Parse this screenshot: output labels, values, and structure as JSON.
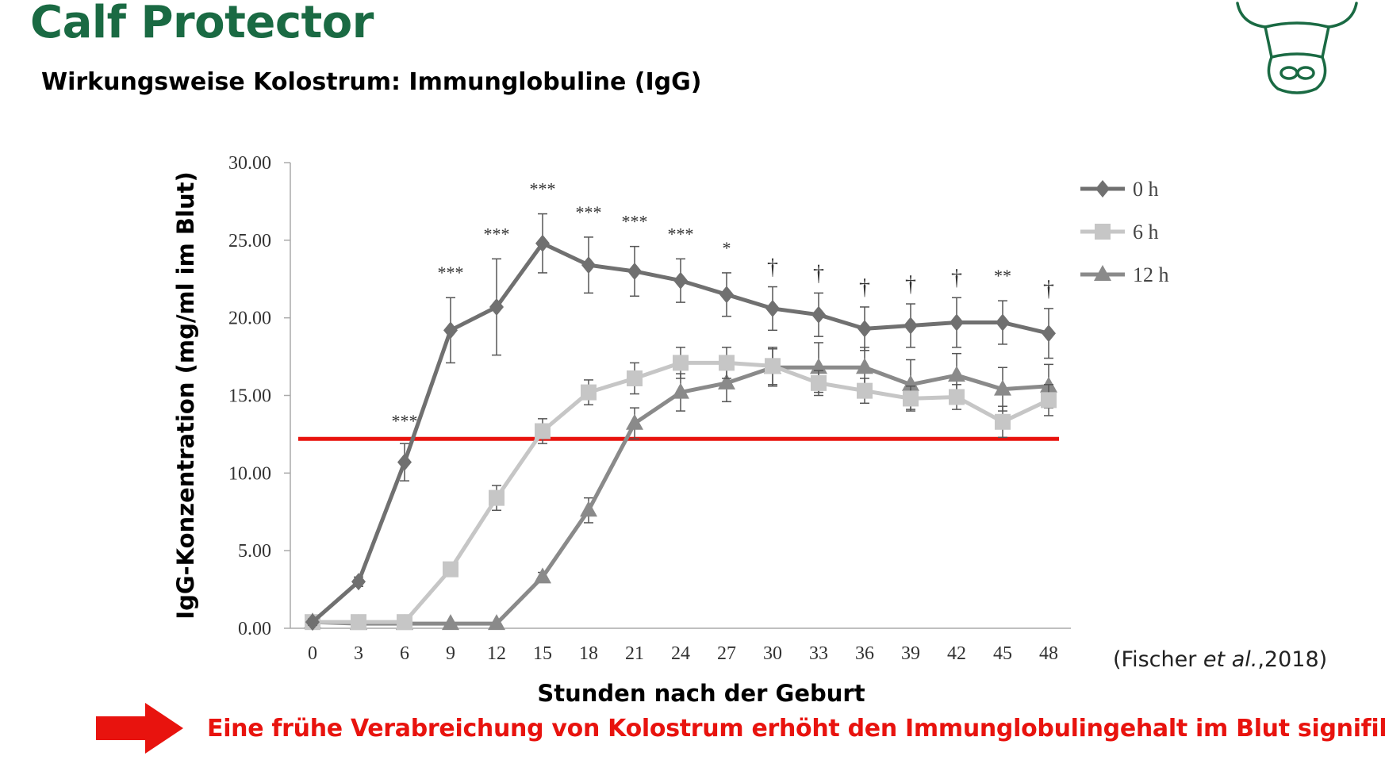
{
  "header": {
    "brand": "Calf Protector",
    "subtitle": "Wirkungsweise Kolostrum: Immunglobuline (IgG)"
  },
  "logo": {
    "icon": "cow-head-icon",
    "color": "#1a6a43"
  },
  "citation": {
    "before": "(Fischer ",
    "italic": "et al.",
    "after": ",2018)"
  },
  "conclusion": {
    "arrow_icon": "right-arrow-icon",
    "text": "Eine frühe Verabreichung von Kolostrum erhöht den Immunglobulingehalt im Blut signifikant.",
    "color": "#e8130e"
  },
  "chart_data": {
    "type": "line",
    "xlabel": "Stunden nach der Geburt",
    "ylabel": "IgG-Konzentration (mg/ml im Blut)",
    "x": [
      0,
      3,
      6,
      9,
      12,
      15,
      18,
      21,
      24,
      27,
      30,
      33,
      36,
      39,
      42,
      45,
      48
    ],
    "x_tick_labels": [
      "0",
      "3",
      "6",
      "9",
      "12",
      "15",
      "18",
      "21",
      "24",
      "27",
      "30",
      "33",
      "36",
      "39",
      "42",
      "45",
      "48"
    ],
    "ylim": [
      0,
      30
    ],
    "y_ticks": [
      "0.00",
      "5.00",
      "10.00",
      "15.00",
      "20.00",
      "25.00",
      "30.00"
    ],
    "grid": false,
    "legend_position": "top-right",
    "series": [
      {
        "name": "0 h",
        "marker": "diamond",
        "color": "#707070",
        "values": [
          0.4,
          3.0,
          10.7,
          19.2,
          20.7,
          24.8,
          23.4,
          23.0,
          22.4,
          21.5,
          20.6,
          20.2,
          19.3,
          19.5,
          19.7,
          19.7,
          19.0
        ],
        "errors": [
          0.2,
          0.3,
          1.2,
          2.1,
          3.1,
          1.9,
          1.8,
          1.6,
          1.4,
          1.4,
          1.4,
          1.4,
          1.4,
          1.4,
          1.6,
          1.4,
          1.6
        ]
      },
      {
        "name": "6 h",
        "marker": "square",
        "color": "#c6c6c6",
        "values": [
          0.4,
          0.4,
          0.4,
          3.8,
          8.4,
          12.7,
          15.2,
          16.1,
          17.1,
          17.1,
          16.9,
          15.8,
          15.3,
          14.8,
          14.9,
          13.3,
          14.7
        ],
        "errors": [
          0.1,
          0.1,
          0.1,
          0.3,
          0.8,
          0.8,
          0.8,
          1.0,
          1.0,
          1.0,
          1.2,
          0.8,
          0.8,
          0.8,
          0.8,
          1.0,
          1.0
        ]
      },
      {
        "name": "12 h",
        "marker": "triangle",
        "color": "#8a8a8a",
        "values": [
          0.4,
          0.3,
          0.3,
          0.3,
          0.3,
          3.3,
          7.6,
          13.2,
          15.2,
          15.8,
          16.8,
          16.8,
          16.8,
          15.7,
          16.3,
          15.4,
          15.6
        ],
        "errors": [
          0.1,
          0.1,
          0.1,
          0.1,
          0.1,
          0.3,
          0.8,
          1.0,
          1.2,
          1.2,
          1.2,
          1.6,
          1.3,
          1.6,
          1.4,
          1.4,
          1.4
        ]
      }
    ],
    "significance": [
      "",
      "",
      "***",
      "***",
      "***",
      "***",
      "***",
      "***",
      "***",
      "*",
      "†",
      "†",
      "†",
      "†",
      "†",
      "**",
      "†"
    ],
    "reference_line": {
      "y": 12.2,
      "color": "#e8130e"
    }
  }
}
